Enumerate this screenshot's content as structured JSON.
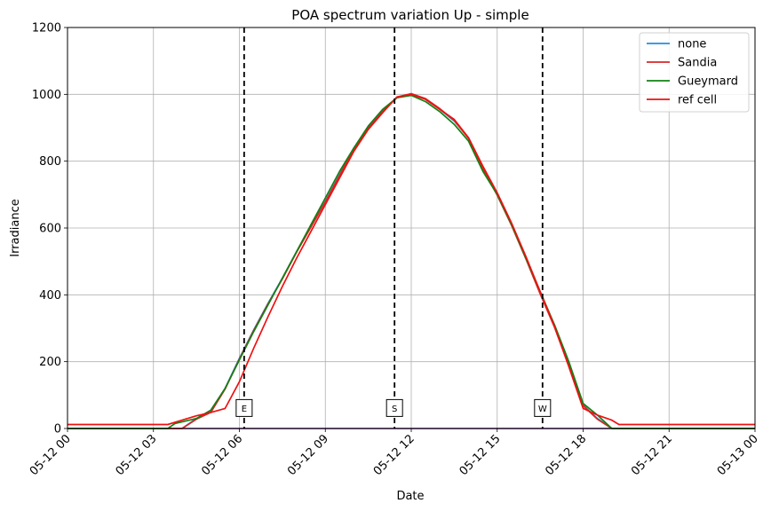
{
  "chart_data": {
    "type": "line",
    "title": "POA spectrum variation Up - simple",
    "xlabel": "Date",
    "ylabel": "Irradiance",
    "x_scale": "time",
    "xlim": [
      "2024-05-12 00:00",
      "2024-05-13 00:00"
    ],
    "ylim": [
      0,
      1200
    ],
    "grid": true,
    "legend_position": "top-right",
    "x_ticks": [
      {
        "t": "2024-05-12 00:00",
        "label": "05-12 00"
      },
      {
        "t": "2024-05-12 03:00",
        "label": "05-12 03"
      },
      {
        "t": "2024-05-12 06:00",
        "label": "05-12 06"
      },
      {
        "t": "2024-05-12 09:00",
        "label": "05-12 09"
      },
      {
        "t": "2024-05-12 12:00",
        "label": "05-12 12"
      },
      {
        "t": "2024-05-12 15:00",
        "label": "05-12 15"
      },
      {
        "t": "2024-05-12 18:00",
        "label": "05-12 18"
      },
      {
        "t": "2024-05-12 21:00",
        "label": "05-12 21"
      },
      {
        "t": "2024-05-13 00:00",
        "label": "05-13 00"
      }
    ],
    "y_ticks": [
      0,
      200,
      400,
      600,
      800,
      1000,
      1200
    ],
    "series": [
      {
        "name": "none",
        "color": "#1f8fe0",
        "points": [
          [
            "2024-05-12 00:00",
            0
          ],
          [
            "2024-05-12 04:00",
            0
          ],
          [
            "2024-05-12 04:30",
            30
          ],
          [
            "2024-05-12 05:00",
            50
          ],
          [
            "2024-05-12 05:30",
            120
          ],
          [
            "2024-05-12 06:00",
            210
          ],
          [
            "2024-05-12 06:30",
            295
          ],
          [
            "2024-05-12 07:00",
            375
          ],
          [
            "2024-05-12 07:30",
            450
          ],
          [
            "2024-05-12 08:00",
            530
          ],
          [
            "2024-05-12 08:30",
            605
          ],
          [
            "2024-05-12 09:00",
            680
          ],
          [
            "2024-05-12 09:30",
            760
          ],
          [
            "2024-05-12 10:00",
            840
          ],
          [
            "2024-05-12 10:30",
            900
          ],
          [
            "2024-05-12 11:00",
            950
          ],
          [
            "2024-05-12 11:30",
            990
          ],
          [
            "2024-05-12 12:00",
            1000
          ],
          [
            "2024-05-12 12:30",
            985
          ],
          [
            "2024-05-12 13:00",
            955
          ],
          [
            "2024-05-12 13:30",
            920
          ],
          [
            "2024-05-12 14:00",
            870
          ],
          [
            "2024-05-12 14:30",
            780
          ],
          [
            "2024-05-12 15:00",
            700
          ],
          [
            "2024-05-12 15:30",
            610
          ],
          [
            "2024-05-12 16:00",
            510
          ],
          [
            "2024-05-12 16:30",
            405
          ],
          [
            "2024-05-12 17:00",
            305
          ],
          [
            "2024-05-12 17:30",
            190
          ],
          [
            "2024-05-12 18:00",
            70
          ],
          [
            "2024-05-12 18:30",
            30
          ],
          [
            "2024-05-12 19:00",
            0
          ],
          [
            "2024-05-13 00:00",
            0
          ]
        ]
      },
      {
        "name": "Sandia",
        "color": "#d62728",
        "points": [
          [
            "2024-05-12 00:00",
            0
          ],
          [
            "2024-05-12 04:00",
            0
          ],
          [
            "2024-05-12 04:30",
            28
          ],
          [
            "2024-05-12 05:00",
            48
          ],
          [
            "2024-05-12 05:30",
            118
          ],
          [
            "2024-05-12 06:00",
            208
          ],
          [
            "2024-05-12 06:30",
            293
          ],
          [
            "2024-05-12 07:00",
            373
          ],
          [
            "2024-05-12 07:30",
            448
          ],
          [
            "2024-05-12 08:00",
            528
          ],
          [
            "2024-05-12 08:30",
            603
          ],
          [
            "2024-05-12 09:00",
            678
          ],
          [
            "2024-05-12 09:30",
            758
          ],
          [
            "2024-05-12 10:00",
            838
          ],
          [
            "2024-05-12 10:30",
            898
          ],
          [
            "2024-05-12 11:00",
            948
          ],
          [
            "2024-05-12 11:30",
            992
          ],
          [
            "2024-05-12 12:00",
            1002
          ],
          [
            "2024-05-12 12:30",
            987
          ],
          [
            "2024-05-12 13:00",
            957
          ],
          [
            "2024-05-12 13:30",
            922
          ],
          [
            "2024-05-12 14:00",
            868
          ],
          [
            "2024-05-12 14:30",
            778
          ],
          [
            "2024-05-12 15:00",
            698
          ],
          [
            "2024-05-12 15:30",
            608
          ],
          [
            "2024-05-12 16:00",
            508
          ],
          [
            "2024-05-12 16:30",
            403
          ],
          [
            "2024-05-12 17:00",
            303
          ],
          [
            "2024-05-12 17:30",
            188
          ],
          [
            "2024-05-12 18:00",
            68
          ],
          [
            "2024-05-12 18:30",
            28
          ],
          [
            "2024-05-12 19:00",
            0
          ],
          [
            "2024-05-13 00:00",
            0
          ]
        ]
      },
      {
        "name": "Gueymard",
        "color": "#138013",
        "points": [
          [
            "2024-05-12 00:00",
            0
          ],
          [
            "2024-05-12 03:30",
            0
          ],
          [
            "2024-05-12 03:45",
            15
          ],
          [
            "2024-05-12 04:30",
            30
          ],
          [
            "2024-05-12 05:00",
            55
          ],
          [
            "2024-05-12 05:30",
            120
          ],
          [
            "2024-05-12 06:00",
            205
          ],
          [
            "2024-05-12 06:30",
            290
          ],
          [
            "2024-05-12 07:00",
            370
          ],
          [
            "2024-05-12 07:30",
            450
          ],
          [
            "2024-05-12 08:00",
            530
          ],
          [
            "2024-05-12 08:30",
            610
          ],
          [
            "2024-05-12 09:00",
            690
          ],
          [
            "2024-05-12 09:30",
            770
          ],
          [
            "2024-05-12 10:00",
            840
          ],
          [
            "2024-05-12 10:30",
            905
          ],
          [
            "2024-05-12 11:00",
            955
          ],
          [
            "2024-05-12 11:30",
            990
          ],
          [
            "2024-05-12 12:00",
            997
          ],
          [
            "2024-05-12 12:30",
            978
          ],
          [
            "2024-05-12 13:00",
            948
          ],
          [
            "2024-05-12 13:30",
            910
          ],
          [
            "2024-05-12 14:00",
            860
          ],
          [
            "2024-05-12 14:30",
            770
          ],
          [
            "2024-05-12 15:00",
            700
          ],
          [
            "2024-05-12 15:30",
            610
          ],
          [
            "2024-05-12 16:00",
            510
          ],
          [
            "2024-05-12 16:30",
            410
          ],
          [
            "2024-05-12 17:00",
            310
          ],
          [
            "2024-05-12 17:30",
            200
          ],
          [
            "2024-05-12 18:00",
            75
          ],
          [
            "2024-05-12 18:30",
            40
          ],
          [
            "2024-05-12 19:00",
            0
          ],
          [
            "2024-05-13 00:00",
            0
          ]
        ]
      },
      {
        "name": "ref cell",
        "color": "#ee1111",
        "points": [
          [
            "2024-05-12 00:00",
            12
          ],
          [
            "2024-05-12 03:30",
            12
          ],
          [
            "2024-05-12 04:00",
            25
          ],
          [
            "2024-05-12 04:30",
            38
          ],
          [
            "2024-05-12 05:00",
            48
          ],
          [
            "2024-05-12 05:30",
            60
          ],
          [
            "2024-05-12 06:00",
            140
          ],
          [
            "2024-05-12 06:30",
            240
          ],
          [
            "2024-05-12 07:00",
            335
          ],
          [
            "2024-05-12 07:30",
            425
          ],
          [
            "2024-05-12 08:00",
            510
          ],
          [
            "2024-05-12 08:30",
            590
          ],
          [
            "2024-05-12 09:00",
            670
          ],
          [
            "2024-05-12 09:30",
            750
          ],
          [
            "2024-05-12 10:00",
            830
          ],
          [
            "2024-05-12 10:30",
            895
          ],
          [
            "2024-05-12 11:00",
            945
          ],
          [
            "2024-05-12 11:30",
            992
          ],
          [
            "2024-05-12 12:00",
            1000
          ],
          [
            "2024-05-12 12:30",
            985
          ],
          [
            "2024-05-12 13:00",
            955
          ],
          [
            "2024-05-12 13:30",
            925
          ],
          [
            "2024-05-12 14:00",
            870
          ],
          [
            "2024-05-12 14:30",
            785
          ],
          [
            "2024-05-12 15:00",
            705
          ],
          [
            "2024-05-12 15:30",
            615
          ],
          [
            "2024-05-12 16:00",
            515
          ],
          [
            "2024-05-12 16:30",
            410
          ],
          [
            "2024-05-12 17:00",
            305
          ],
          [
            "2024-05-12 17:30",
            185
          ],
          [
            "2024-05-12 18:00",
            60
          ],
          [
            "2024-05-12 18:30",
            40
          ],
          [
            "2024-05-12 19:00",
            25
          ],
          [
            "2024-05-12 19:15",
            12
          ],
          [
            "2024-05-13 00:00",
            12
          ]
        ]
      }
    ],
    "vertical_markers": [
      {
        "label": "E",
        "t": "2024-05-12 06:10",
        "y": 60
      },
      {
        "label": "S",
        "t": "2024-05-12 11:25",
        "y": 60
      },
      {
        "label": "W",
        "t": "2024-05-12 16:35",
        "y": 60
      }
    ]
  }
}
